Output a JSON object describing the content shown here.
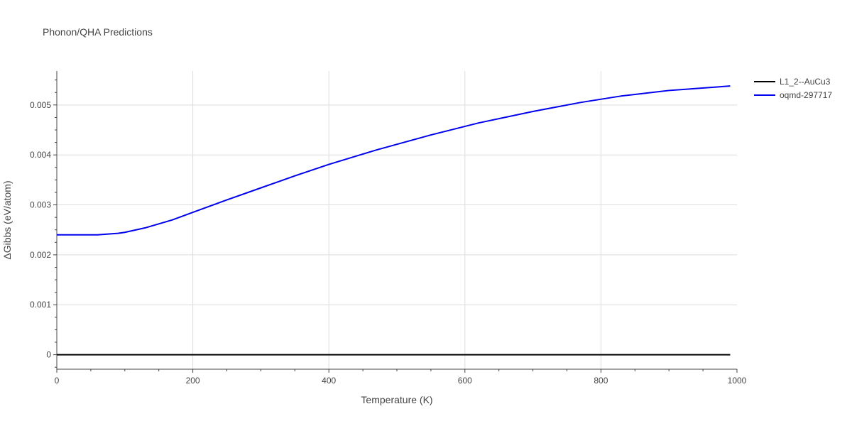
{
  "chart_data": {
    "type": "line",
    "title": "Phonon/QHA Predictions",
    "xlabel": "Temperature (K)",
    "ylabel": "ΔGibbs (eV/atom)",
    "xlim": [
      0,
      1000
    ],
    "ylim": [
      -0.00029,
      0.00568
    ],
    "x_ticks": [
      0,
      200,
      400,
      600,
      800,
      1000
    ],
    "x_tick_labels": [
      "0",
      "200",
      "400",
      "600",
      "800",
      "1000"
    ],
    "y_ticks": [
      0,
      0.001,
      0.002,
      0.003,
      0.004,
      0.005
    ],
    "y_tick_labels": [
      "0",
      "0.001",
      "0.002",
      "0.003",
      "0.004",
      "0.005"
    ],
    "grid": true,
    "legend_position": "top-right",
    "series": [
      {
        "name": "L1_2--AuCu3",
        "color": "#000000",
        "x": [
          0,
          100,
          200,
          300,
          400,
          500,
          600,
          700,
          800,
          900,
          990
        ],
        "y": [
          0,
          0,
          0,
          0,
          0,
          0,
          0,
          0,
          0,
          0,
          0
        ]
      },
      {
        "name": "oqmd-297717",
        "color": "#0000ee",
        "x": [
          0,
          30,
          60,
          70,
          90,
          100,
          130,
          170,
          200,
          250,
          300,
          350,
          400,
          470,
          550,
          620,
          700,
          770,
          830,
          900,
          960,
          990
        ],
        "y": [
          0.0024,
          0.0024,
          0.0024,
          0.00241,
          0.00243,
          0.00245,
          0.00254,
          0.0027,
          0.00285,
          0.0031,
          0.00334,
          0.00358,
          0.00381,
          0.0041,
          0.0044,
          0.00464,
          0.00487,
          0.00505,
          0.00518,
          0.00529,
          0.00535,
          0.00538
        ]
      }
    ]
  }
}
